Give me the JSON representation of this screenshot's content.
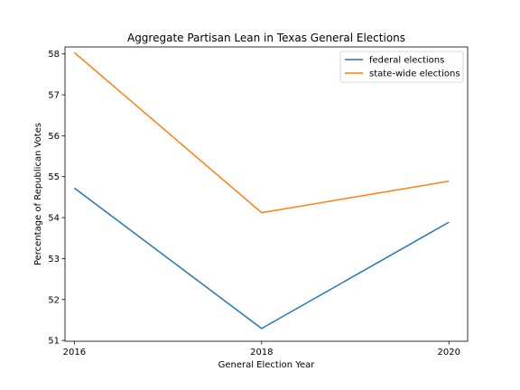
{
  "chart_data": {
    "type": "line",
    "title": "Aggregate Partisan Lean in Texas General Elections",
    "xlabel": "General Election Year",
    "ylabel": "Percentage of Republican Votes",
    "x": [
      2016,
      2018,
      2020
    ],
    "xticks": [
      "2016",
      "2018",
      "2020"
    ],
    "yticks": [
      "51",
      "52",
      "53",
      "54",
      "55",
      "56",
      "57",
      "58"
    ],
    "xlim": [
      2015.9,
      2020.2
    ],
    "ylim": [
      50.98,
      58.17
    ],
    "grid": false,
    "legend_position": "top-right",
    "series": [
      {
        "name": "federal elections",
        "color": "#1f77b4",
        "values": [
          54.72,
          51.29,
          53.89
        ]
      },
      {
        "name": "state-wide elections",
        "color": "#ff7f0e",
        "values": [
          58.03,
          54.12,
          54.89
        ]
      }
    ]
  }
}
